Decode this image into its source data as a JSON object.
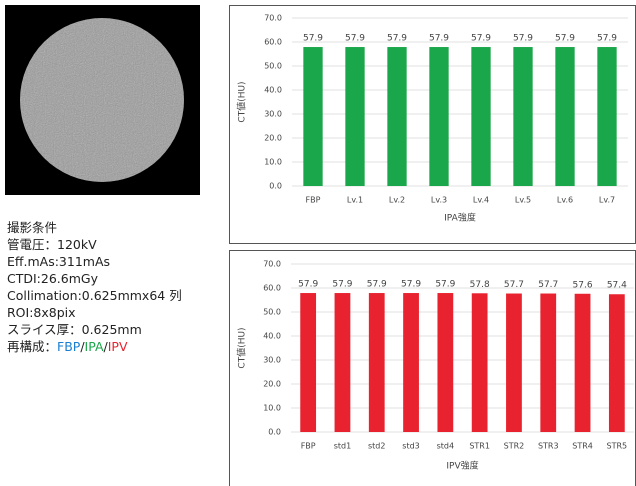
{
  "conditions": {
    "heading": "撮影条件",
    "lines": [
      "管電圧：120kV",
      "Eff.mAs:311mAs",
      "CTDI:26.6mGy",
      "Collimation:0.625mmx64 列",
      "ROI:8x8pix",
      "スライス厚：0.625mm"
    ],
    "recon": {
      "label": "再構成：",
      "fbp": "FBP",
      "sep": "/",
      "ipa": "IPA",
      "ipv": "IPV"
    }
  },
  "chart_data": [
    {
      "type": "bar",
      "x_label": "IPA強度",
      "y_label": "CT値(HU)",
      "color": "#1aa64a",
      "grid": true,
      "categories": [
        "FBP",
        "Lv.1",
        "Lv.2",
        "Lv.3",
        "Lv.4",
        "Lv.5",
        "Lv.6",
        "Lv.7"
      ],
      "values": [
        57.9,
        57.9,
        57.9,
        57.9,
        57.9,
        57.9,
        57.9,
        57.9
      ],
      "ylim": [
        0,
        70
      ],
      "yticks": [
        {
          "value": 0,
          "label": "0.0"
        },
        {
          "value": 10,
          "label": "10.0"
        },
        {
          "value": 20,
          "label": "20.0"
        },
        {
          "value": 30,
          "label": "30.0"
        },
        {
          "value": 40,
          "label": "40.0"
        },
        {
          "value": 50,
          "label": "50.0"
        },
        {
          "value": 60,
          "label": "60.0"
        },
        {
          "value": 70,
          "label": "70.0"
        }
      ]
    },
    {
      "type": "bar",
      "x_label": "IPV強度",
      "y_label": "CT値(HU)",
      "color": "#e8232f",
      "grid": true,
      "categories": [
        "FBP",
        "std1",
        "std2",
        "std3",
        "std4",
        "STR1",
        "STR2",
        "STR3",
        "STR4",
        "STR5"
      ],
      "values": [
        57.9,
        57.9,
        57.9,
        57.9,
        57.9,
        57.8,
        57.7,
        57.7,
        57.6,
        57.4
      ],
      "ylim": [
        0,
        70
      ],
      "yticks": [
        {
          "value": 0,
          "label": "0.0"
        },
        {
          "value": 10,
          "label": "10.0"
        },
        {
          "value": 20,
          "label": "20.0"
        },
        {
          "value": 30,
          "label": "30.0"
        },
        {
          "value": 40,
          "label": "40.0"
        },
        {
          "value": 50,
          "label": "50.0"
        },
        {
          "value": 60,
          "label": "60.0"
        },
        {
          "value": 70,
          "label": "70.0"
        }
      ]
    }
  ]
}
